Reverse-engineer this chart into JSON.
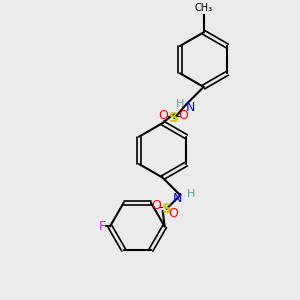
{
  "background_color": "#ebebeb",
  "bond_color": "#000000",
  "atom_colors": {
    "N": "#0000ff",
    "S": "#cccc00",
    "O": "#ff0000",
    "F": "#ff00ff",
    "H": "#5f9ea0",
    "C": "#000000"
  },
  "figsize": [
    3.0,
    3.0
  ],
  "dpi": 100
}
